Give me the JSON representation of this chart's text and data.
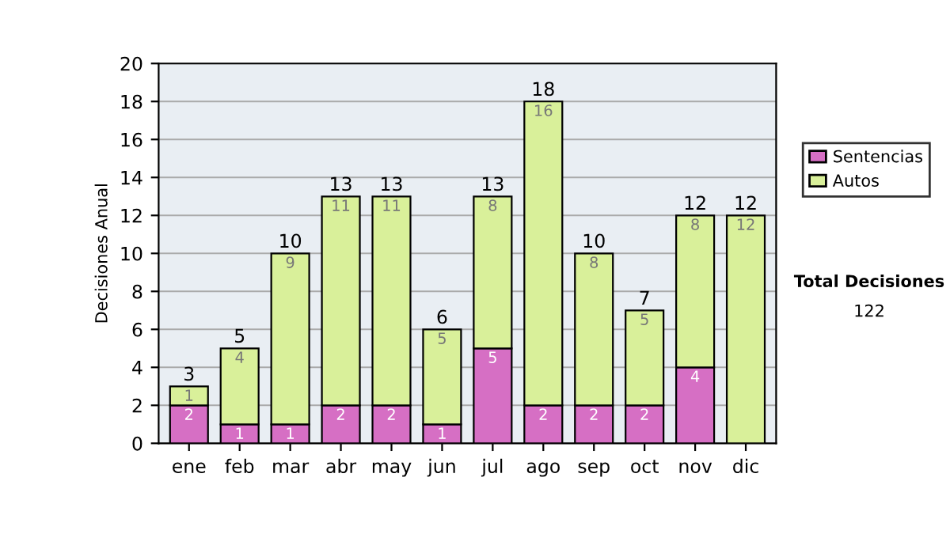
{
  "chart_data": {
    "type": "bar",
    "stacked": true,
    "ylabel": "Decisiones Anual",
    "categories": [
      "ene",
      "feb",
      "mar",
      "abr",
      "may",
      "jun",
      "jul",
      "ago",
      "sep",
      "oct",
      "nov",
      "dic"
    ],
    "series": [
      {
        "name": "Sentencias",
        "color": "#d66fc4",
        "values": [
          2,
          1,
          1,
          2,
          2,
          1,
          5,
          2,
          2,
          2,
          4,
          0
        ],
        "value_labels": [
          "2",
          "1",
          "1",
          "2",
          "2",
          "1",
          "5",
          "2",
          "2",
          "2",
          "4",
          null
        ]
      },
      {
        "name": "Autos",
        "color": "#d9f09a",
        "values": [
          1,
          4,
          9,
          11,
          11,
          5,
          8,
          16,
          8,
          5,
          8,
          12
        ],
        "value_labels": [
          "1",
          "4",
          "9",
          "11",
          "11",
          "5",
          "8",
          "16",
          "8",
          "5",
          "8",
          "12"
        ]
      }
    ],
    "totals": [
      "3",
      "5",
      "10",
      "13",
      "13",
      "6",
      "13",
      "18",
      "10",
      "7",
      "12",
      "12"
    ],
    "ylim": [
      0,
      20
    ],
    "yticks": [
      0,
      2,
      4,
      6,
      8,
      10,
      12,
      14,
      16,
      18,
      20
    ],
    "grid": "y",
    "legend": "right",
    "annotations": [
      "Total Decisiones",
      "122"
    ]
  }
}
